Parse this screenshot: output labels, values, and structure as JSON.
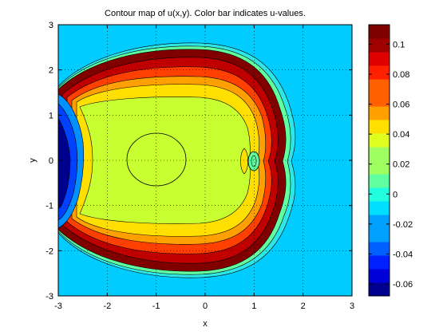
{
  "chart_data": {
    "type": "contour",
    "title": "Contour map of u(x,y).  Color bar indicates u-values.",
    "xlabel": "x",
    "ylabel": "y",
    "xlim": [
      -3,
      3
    ],
    "ylim": [
      -3,
      3
    ],
    "grid": true,
    "x_ticks": [
      "-3",
      "-2",
      "-1",
      "0",
      "1",
      "2",
      "3"
    ],
    "y_ticks": [
      "3",
      "2",
      "1",
      "0",
      "-1",
      "-2",
      "-3"
    ],
    "colorbar": {
      "range": [
        -0.068,
        0.113
      ],
      "tick_values": [
        0.1,
        0.08,
        0.06,
        0.04,
        0.02,
        0,
        -0.02,
        -0.04,
        -0.06
      ],
      "tick_labels": [
        "0.1",
        "0.08",
        "0.06",
        "0.04",
        "0.02",
        "0",
        "-0.02",
        "-0.04",
        "-0.06"
      ],
      "levels": 20
    },
    "palette": [
      "#00008f",
      "#0000d8",
      "#0020ff",
      "#0060ff",
      "#00a0ff",
      "#00dfff",
      "#20ffdf",
      "#60ff9f",
      "#a0ff60",
      "#dfff20",
      "#ffdf00",
      "#ffa000",
      "#ff6000",
      "#ff2000",
      "#df0000",
      "#9f0000",
      "#800000"
    ],
    "background_color": "#00ccff"
  }
}
